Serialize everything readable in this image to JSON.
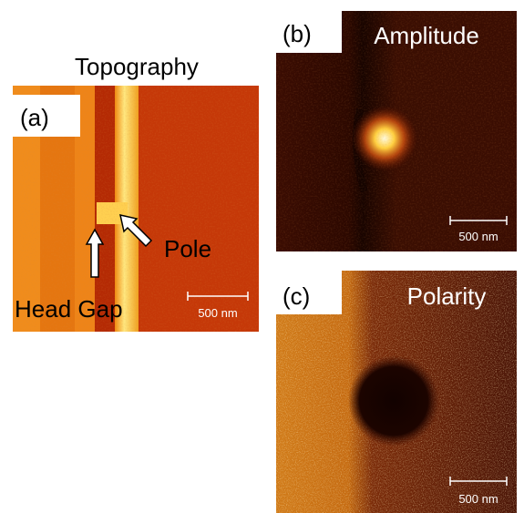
{
  "panels": [
    {
      "label": "(a)",
      "title": "Topography",
      "scale_bar": "500 nm",
      "annotations": [
        "Head Gap",
        "Pole"
      ]
    },
    {
      "label": "(b)",
      "title": "Amplitude",
      "scale_bar": "500 nm"
    },
    {
      "label": "(c)",
      "title": "Polarity",
      "scale_bar": "500 nm"
    }
  ]
}
